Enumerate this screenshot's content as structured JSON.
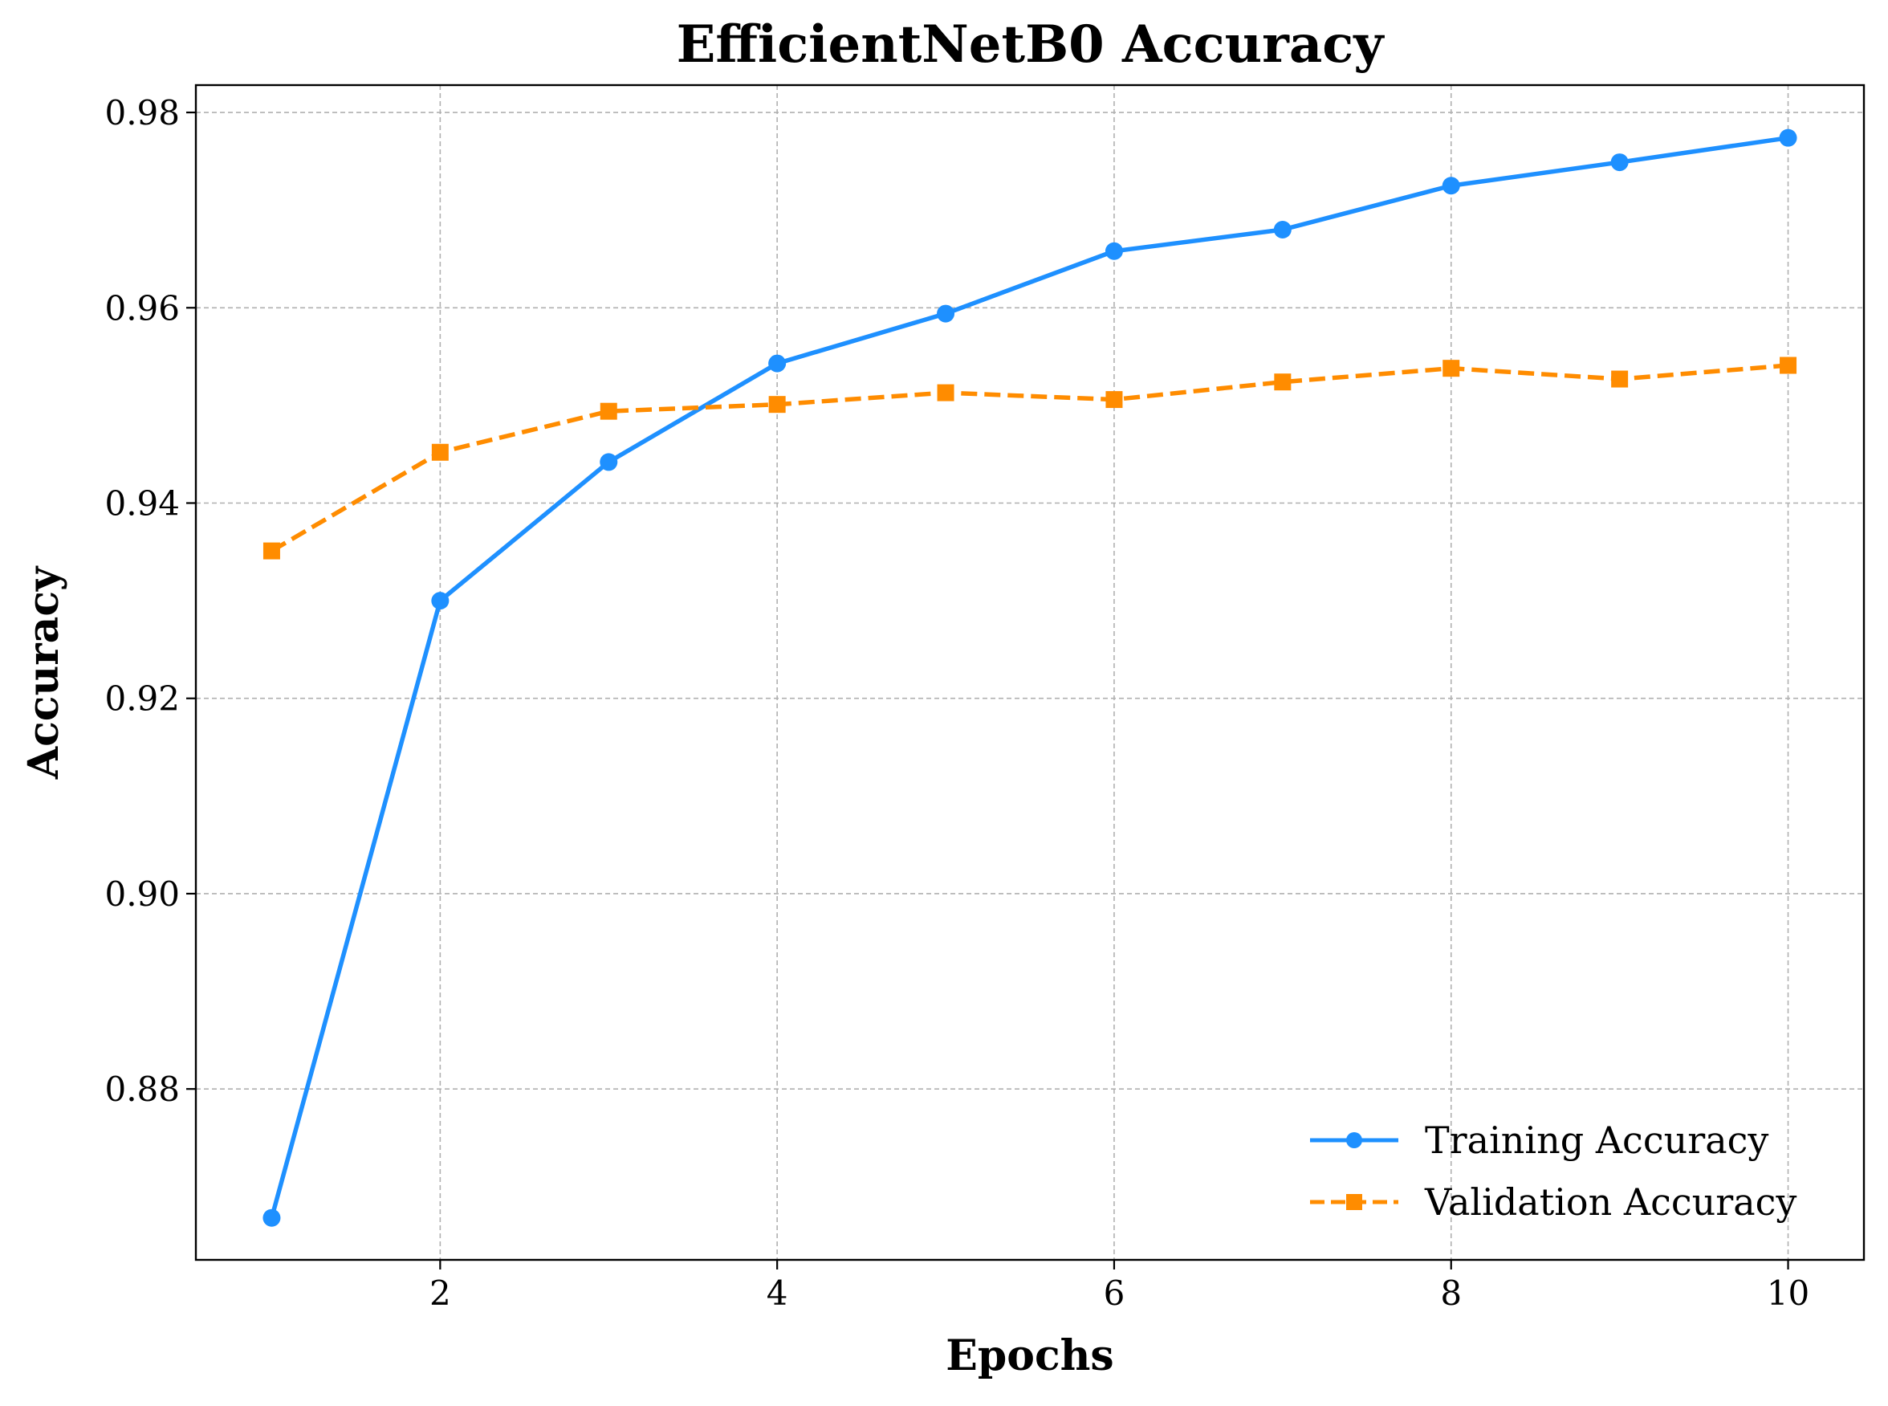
{
  "chart_data": {
    "type": "line",
    "title": "EfficientNetB0 Accuracy",
    "xlabel": "Epochs",
    "ylabel": "Accuracy",
    "x": [
      1,
      2,
      3,
      4,
      5,
      6,
      7,
      8,
      9,
      10
    ],
    "xlim": [
      0.55,
      10.45
    ],
    "ylim": [
      0.8625,
      0.9828
    ],
    "xticks": [
      2,
      4,
      6,
      8,
      10
    ],
    "xtick_labels": [
      "2",
      "4",
      "6",
      "8",
      "10"
    ],
    "yticks": [
      0.88,
      0.9,
      0.92,
      0.94,
      0.96,
      0.98
    ],
    "ytick_labels": [
      "0.88",
      "0.90",
      "0.92",
      "0.94",
      "0.96",
      "0.98"
    ],
    "grid": true,
    "legend_position": "lower-right",
    "series": [
      {
        "name": "Training Accuracy",
        "color": "#1E90FF",
        "line_style": "solid",
        "marker": "circle",
        "values": [
          0.8668,
          0.93,
          0.9442,
          0.9543,
          0.9594,
          0.9658,
          0.968,
          0.9725,
          0.9749,
          0.9774
        ]
      },
      {
        "name": "Validation Accuracy",
        "color": "#FF8C00",
        "line_style": "dashed",
        "marker": "square",
        "values": [
          0.9351,
          0.9452,
          0.9494,
          0.9501,
          0.9513,
          0.9506,
          0.9524,
          0.9538,
          0.9527,
          0.9541
        ]
      }
    ]
  }
}
